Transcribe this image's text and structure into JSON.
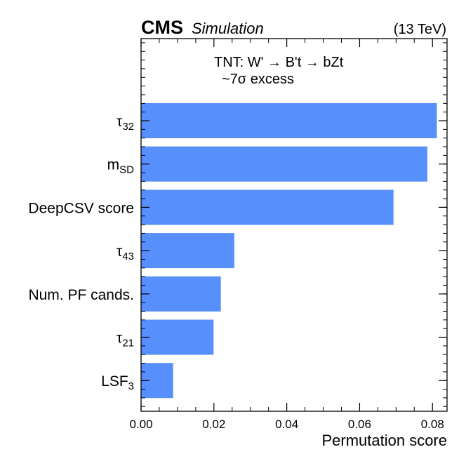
{
  "header": {
    "experiment": "CMS",
    "tag": "Simulation",
    "energy": "(13 TeV)"
  },
  "annotation": {
    "line1": "TNT: W' →  B't →  bZt",
    "line2": "~7σ excess"
  },
  "colors": {
    "bar": "#5790fc"
  },
  "chart_data": {
    "type": "bar",
    "orientation": "horizontal",
    "categories": [
      {
        "base": "τ",
        "sub": "32"
      },
      {
        "base": "m",
        "sub": "SD"
      },
      {
        "base": "DeepCSV score",
        "sub": ""
      },
      {
        "base": "τ",
        "sub": "43"
      },
      {
        "base": "Num. PF cands.",
        "sub": ""
      },
      {
        "base": "τ",
        "sub": "21"
      },
      {
        "base": "LSF",
        "sub": "3"
      }
    ],
    "values": [
      0.0812,
      0.0786,
      0.0693,
      0.0256,
      0.0219,
      0.0199,
      0.0088
    ],
    "xlabel": "Permutation score",
    "xlim": [
      0,
      0.084
    ],
    "xticks": [
      0.0,
      0.02,
      0.04,
      0.06,
      0.08
    ],
    "xtick_labels": [
      "0.00",
      "0.02",
      "0.04",
      "0.06",
      "0.08"
    ],
    "grid": false
  }
}
